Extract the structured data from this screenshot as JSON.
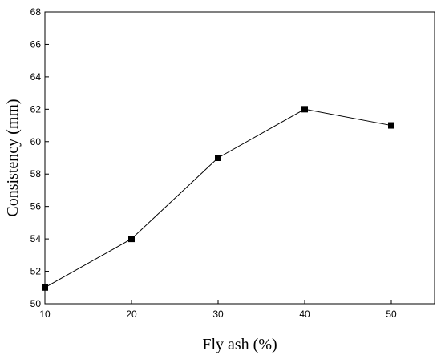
{
  "chart_data": {
    "type": "line",
    "xlabel": "Fly ash (%)",
    "ylabel": "Consistency (mm)",
    "xlim": [
      10,
      55
    ],
    "ylim": [
      50,
      68
    ],
    "xticks": [
      10,
      20,
      30,
      40,
      50
    ],
    "yticks": [
      50,
      52,
      54,
      56,
      58,
      60,
      62,
      64,
      66,
      68
    ],
    "grid": false,
    "marker": "square",
    "series": [
      {
        "x": [
          10,
          20,
          30,
          40,
          50
        ],
        "values": [
          51,
          54,
          59,
          62,
          61
        ],
        "color": "#000000"
      }
    ]
  }
}
